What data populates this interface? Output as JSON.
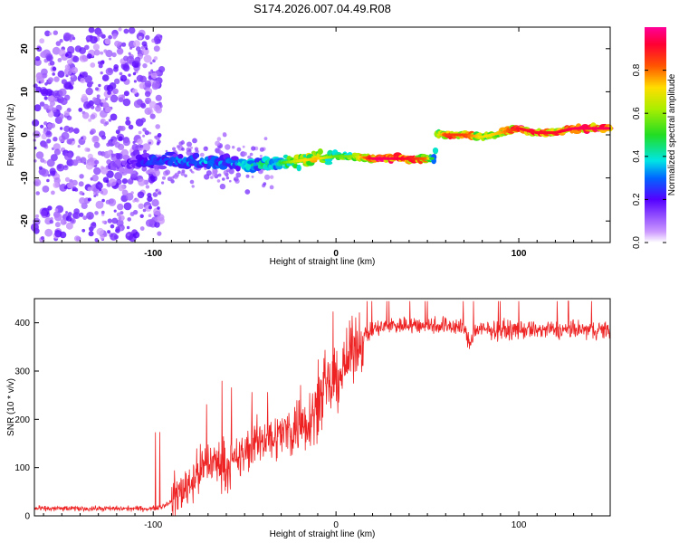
{
  "title": "S174.2026.007.04.49.R08",
  "chart_data": [
    {
      "type": "heatmap",
      "xlabel": "Height of straight line (km)",
      "ylabel": "Frequency (Hz)",
      "xlim": [
        -165,
        150
      ],
      "ylim": [
        -25,
        25
      ],
      "x_ticks": [
        -100,
        0,
        100
      ],
      "x_tick_labels": [
        "-100",
        "0",
        "100"
      ],
      "y_ticks": [
        -20,
        -10,
        0,
        10,
        20
      ],
      "y_tick_labels": [
        "-20",
        "-10",
        "0",
        "10",
        "20"
      ],
      "colorbar": {
        "label": "Normalized spectral amplitude",
        "range": [
          0,
          1
        ],
        "ticks": [
          0.0,
          0.2,
          0.4,
          0.6,
          0.8
        ],
        "tick_labels": [
          "0.0",
          "0.2",
          "0.4",
          "0.6",
          "0.8"
        ]
      },
      "ridge": {
        "x": [
          -120,
          -100,
          -80,
          -60,
          -40,
          -30,
          -20,
          -10,
          0,
          10,
          20,
          30,
          40,
          50,
          54,
          55,
          60,
          70,
          80,
          90,
          100,
          110,
          120,
          130,
          140,
          150
        ],
        "frequency": [
          -7,
          -6,
          -6,
          -6.5,
          -7,
          -6.5,
          -6,
          -5.5,
          -5,
          -5,
          -5.5,
          -5.5,
          -5.5,
          -5.5,
          -5.5,
          0,
          0,
          0,
          -0.5,
          0.5,
          1.5,
          0.5,
          0.5,
          1.5,
          1.5,
          1.5
        ],
        "amplitude": [
          0.15,
          0.3,
          0.35,
          0.35,
          0.45,
          0.5,
          0.7,
          0.75,
          0.55,
          0.6,
          0.95,
          0.95,
          0.9,
          0.8,
          0.3,
          0.6,
          0.85,
          0.85,
          0.7,
          0.75,
          0.9,
          0.9,
          0.9,
          0.95,
          0.95,
          0.95
        ]
      }
    },
    {
      "type": "line",
      "xlabel": "Height of straight line (km)",
      "ylabel": "SNR (10 * v/v)",
      "xlim": [
        -165,
        150
      ],
      "ylim": [
        0,
        450
      ],
      "x_ticks": [
        -100,
        0,
        100
      ],
      "x_tick_labels": [
        "-100",
        "0",
        "100"
      ],
      "y_ticks": [
        0,
        100,
        200,
        300,
        400
      ],
      "y_tick_labels": [
        "0",
        "100",
        "200",
        "300",
        "400"
      ],
      "series": [
        {
          "name": "SNR",
          "color": "#ee2222",
          "x": [
            -165,
            -150,
            -130,
            -110,
            -100,
            -95,
            -90,
            -85,
            -80,
            -75,
            -70,
            -65,
            -60,
            -55,
            -50,
            -45,
            -40,
            -35,
            -30,
            -25,
            -20,
            -15,
            -10,
            -5,
            0,
            5,
            10,
            15,
            20,
            25,
            30,
            40,
            50,
            60,
            70,
            73,
            76,
            80,
            90,
            100,
            110,
            120,
            130,
            140,
            150
          ],
          "values": [
            15,
            15,
            15,
            15,
            15,
            20,
            30,
            50,
            70,
            90,
            110,
            110,
            100,
            110,
            130,
            150,
            160,
            160,
            170,
            180,
            190,
            200,
            230,
            260,
            280,
            310,
            350,
            370,
            385,
            390,
            395,
            395,
            395,
            395,
            390,
            355,
            385,
            385,
            385,
            385,
            385,
            385,
            385,
            385,
            385
          ]
        }
      ]
    }
  ]
}
